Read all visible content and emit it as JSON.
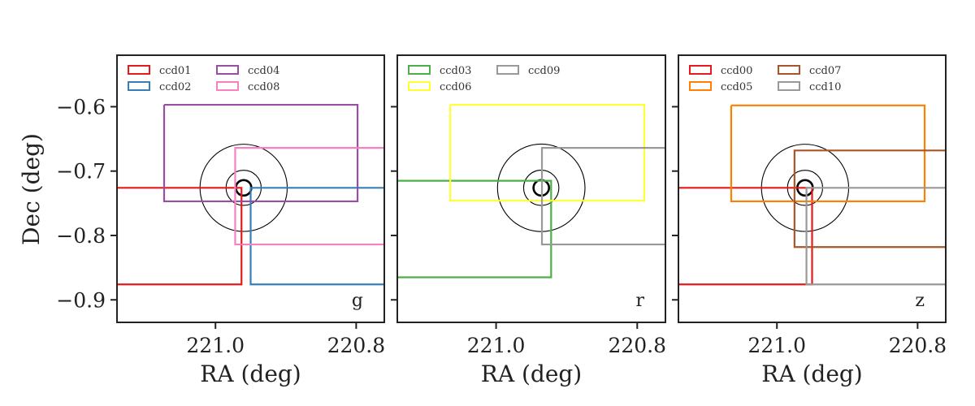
{
  "chart_data": [
    {
      "type": "line",
      "band": "g",
      "xlabel": "RA (deg)",
      "ylabel": "Dec (deg)",
      "xlim": [
        221.14,
        220.76
      ],
      "ylim": [
        -0.935,
        -0.52
      ],
      "xticks": [
        221.0,
        220.8
      ],
      "xtick_labels": [
        "221.0",
        "220.8"
      ],
      "yticks": [
        -0.6,
        -0.7,
        -0.8,
        -0.9
      ],
      "ytick_labels": [
        "−0.6",
        "−0.7",
        "−0.8",
        "−0.9"
      ],
      "legend_position": "top-left",
      "circles": {
        "center": [
          220.96,
          -0.726
        ],
        "radii": [
          0.062,
          0.025,
          0.011
        ]
      },
      "series": [
        {
          "name": "ccd01",
          "color": "#e41a1c",
          "x": [
            221.14,
            220.963,
            220.963,
            221.14
          ],
          "y": [
            -0.726,
            -0.726,
            -0.876,
            -0.876
          ]
        },
        {
          "name": "ccd02",
          "color": "#377eb8",
          "x": [
            220.76,
            220.95,
            220.95,
            220.76
          ],
          "y": [
            -0.726,
            -0.726,
            -0.876,
            -0.876
          ]
        },
        {
          "name": "ccd04",
          "color": "#984ea3",
          "x": [
            221.073,
            220.798,
            220.798,
            221.073,
            221.073
          ],
          "y": [
            -0.597,
            -0.597,
            -0.747,
            -0.747,
            -0.597
          ]
        },
        {
          "name": "ccd08",
          "color": "#f781bf",
          "x": [
            220.76,
            220.972,
            220.972,
            220.76
          ],
          "y": [
            -0.664,
            -0.664,
            -0.814,
            -0.814
          ]
        }
      ]
    },
    {
      "type": "line",
      "band": "r",
      "xlabel": "RA (deg)",
      "xlim": [
        221.14,
        220.76
      ],
      "ylim": [
        -0.935,
        -0.52
      ],
      "xticks": [
        221.0,
        220.8
      ],
      "xtick_labels": [
        "221.0",
        "220.8"
      ],
      "yticks": [
        -0.6,
        -0.7,
        -0.8,
        -0.9
      ],
      "legend_position": "top-left",
      "circles": {
        "center": [
          220.936,
          -0.726
        ],
        "radii": [
          0.062,
          0.025,
          0.011
        ]
      },
      "series": [
        {
          "name": "ccd03",
          "color": "#4daf4a",
          "x": [
            221.14,
            220.922,
            220.922,
            221.14
          ],
          "y": [
            -0.715,
            -0.715,
            -0.865,
            -0.865
          ]
        },
        {
          "name": "ccd06",
          "color": "#ffff33",
          "x": [
            221.065,
            220.79,
            220.79,
            221.065,
            221.065
          ],
          "y": [
            -0.597,
            -0.597,
            -0.746,
            -0.746,
            -0.597
          ]
        },
        {
          "name": "ccd09",
          "color": "#999999",
          "x": [
            220.76,
            220.935,
            220.935,
            220.76
          ],
          "y": [
            -0.664,
            -0.664,
            -0.814,
            -0.814
          ]
        }
      ]
    },
    {
      "type": "line",
      "band": "z",
      "xlabel": "RA (deg)",
      "xlim": [
        221.14,
        220.76
      ],
      "ylim": [
        -0.935,
        -0.52
      ],
      "xticks": [
        221.0,
        220.8
      ],
      "xtick_labels": [
        "221.0",
        "220.8"
      ],
      "yticks": [
        -0.6,
        -0.7,
        -0.8,
        -0.9
      ],
      "legend_position": "top-left",
      "circles": {
        "center": [
          220.96,
          -0.726
        ],
        "radii": [
          0.062,
          0.025,
          0.011
        ]
      },
      "series": [
        {
          "name": "ccd00",
          "color": "#e41a1c",
          "x": [
            221.14,
            220.95,
            220.95,
            221.14
          ],
          "y": [
            -0.726,
            -0.726,
            -0.876,
            -0.876
          ]
        },
        {
          "name": "ccd05",
          "color": "#ff7f00",
          "x": [
            221.065,
            220.79,
            220.79,
            221.065,
            221.065
          ],
          "y": [
            -0.598,
            -0.598,
            -0.747,
            -0.747,
            -0.598
          ]
        },
        {
          "name": "ccd07",
          "color": "#a65628",
          "x": [
            220.76,
            220.975,
            220.975,
            220.76
          ],
          "y": [
            -0.668,
            -0.668,
            -0.818,
            -0.818
          ]
        },
        {
          "name": "ccd10",
          "color": "#999999",
          "x": [
            220.76,
            220.958,
            220.958,
            220.76
          ],
          "y": [
            -0.726,
            -0.726,
            -0.876,
            -0.876
          ]
        }
      ]
    }
  ]
}
